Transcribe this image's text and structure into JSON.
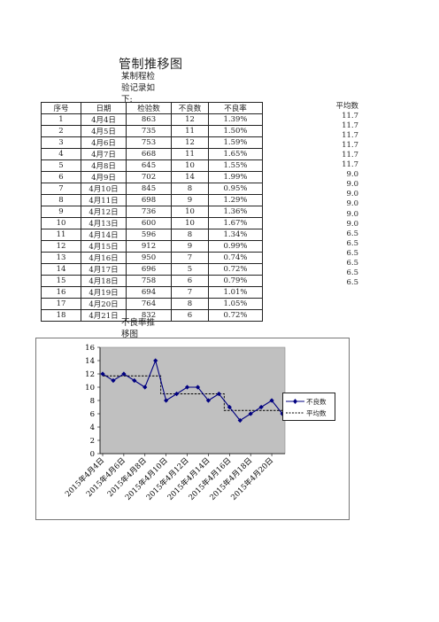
{
  "header": {
    "title": "管制推移图",
    "subtitle": "某制程检验记录如下:"
  },
  "table": {
    "columns": [
      "序号",
      "日期",
      "检验数",
      "不良数",
      "不良率"
    ],
    "avg_header": "平均数",
    "rows": [
      {
        "seq": "1",
        "date": "4月4日",
        "inspected": "863",
        "defects": "12",
        "rate": "1.39%",
        "avg": "11.7"
      },
      {
        "seq": "2",
        "date": "4月5日",
        "inspected": "735",
        "defects": "11",
        "rate": "1.50%",
        "avg": "11.7"
      },
      {
        "seq": "3",
        "date": "4月6日",
        "inspected": "753",
        "defects": "12",
        "rate": "1.59%",
        "avg": "11.7"
      },
      {
        "seq": "4",
        "date": "4月7日",
        "inspected": "668",
        "defects": "11",
        "rate": "1.65%",
        "avg": "11.7"
      },
      {
        "seq": "5",
        "date": "4月8日",
        "inspected": "645",
        "defects": "10",
        "rate": "1.55%",
        "avg": "11.7"
      },
      {
        "seq": "6",
        "date": "4月9日",
        "inspected": "702",
        "defects": "14",
        "rate": "1.99%",
        "avg": "11.7"
      },
      {
        "seq": "7",
        "date": "4月10日",
        "inspected": "845",
        "defects": "8",
        "rate": "0.95%",
        "avg": "9.0"
      },
      {
        "seq": "8",
        "date": "4月11日",
        "inspected": "698",
        "defects": "9",
        "rate": "1.29%",
        "avg": "9.0"
      },
      {
        "seq": "9",
        "date": "4月12日",
        "inspected": "736",
        "defects": "10",
        "rate": "1.36%",
        "avg": "9.0"
      },
      {
        "seq": "10",
        "date": "4月13日",
        "inspected": "600",
        "defects": "10",
        "rate": "1.67%",
        "avg": "9.0"
      },
      {
        "seq": "11",
        "date": "4月14日",
        "inspected": "596",
        "defects": "8",
        "rate": "1.34%",
        "avg": "9.0"
      },
      {
        "seq": "12",
        "date": "4月15日",
        "inspected": "912",
        "defects": "9",
        "rate": "0.99%",
        "avg": "9.0"
      },
      {
        "seq": "13",
        "date": "4月16日",
        "inspected": "950",
        "defects": "7",
        "rate": "0.74%",
        "avg": "6.5"
      },
      {
        "seq": "14",
        "date": "4月17日",
        "inspected": "696",
        "defects": "5",
        "rate": "0.72%",
        "avg": "6.5"
      },
      {
        "seq": "15",
        "date": "4月18日",
        "inspected": "758",
        "defects": "6",
        "rate": "0.79%",
        "avg": "6.5"
      },
      {
        "seq": "16",
        "date": "4月19日",
        "inspected": "694",
        "defects": "7",
        "rate": "1.01%",
        "avg": "6.5"
      },
      {
        "seq": "17",
        "date": "4月20日",
        "inspected": "764",
        "defects": "8",
        "rate": "1.05%",
        "avg": "6.5"
      },
      {
        "seq": "18",
        "date": "4月21日",
        "inspected": "832",
        "defects": "6",
        "rate": "0.72%",
        "avg": "6.5"
      }
    ]
  },
  "chart_title": "不良率推移图",
  "chart_data": {
    "type": "line",
    "x": [
      "2015年4月4日",
      "2015年4月5日",
      "2015年4月6日",
      "2015年4月7日",
      "2015年4月8日",
      "2015年4月9日",
      "2015年4月10日",
      "2015年4月11日",
      "2015年4月12日",
      "2015年4月13日",
      "2015年4月14日",
      "2015年4月15日",
      "2015年4月16日",
      "2015年4月17日",
      "2015年4月18日",
      "2015年4月19日",
      "2015年4月20日",
      "2015年4月21日"
    ],
    "tick_labels": [
      "2015年4月4日",
      "2015年4月6日",
      "2015年4月8日",
      "2015年4月10日",
      "2015年4月12日",
      "2015年4月14日",
      "2015年4月16日",
      "2015年4月18日",
      "2015年4月20日"
    ],
    "series": [
      {
        "name": "不良数",
        "values": [
          12,
          11,
          12,
          11,
          10,
          14,
          8,
          9,
          10,
          10,
          8,
          9,
          7,
          5,
          6,
          7,
          8,
          6
        ],
        "color": "#000080",
        "marker": "diamond",
        "style": "solid"
      },
      {
        "name": "平均数",
        "values": [
          11.7,
          11.7,
          11.7,
          11.7,
          11.7,
          11.7,
          9.0,
          9.0,
          9.0,
          9.0,
          9.0,
          9.0,
          6.5,
          6.5,
          6.5,
          6.5,
          6.5,
          6.5
        ],
        "color": "#000000",
        "style": "dashed"
      }
    ],
    "yticks": [
      0,
      2,
      4,
      6,
      8,
      10,
      12,
      14,
      16
    ],
    "ylim": [
      0,
      16
    ],
    "plot_background": "#c0c0c0",
    "legend_position": "right"
  }
}
